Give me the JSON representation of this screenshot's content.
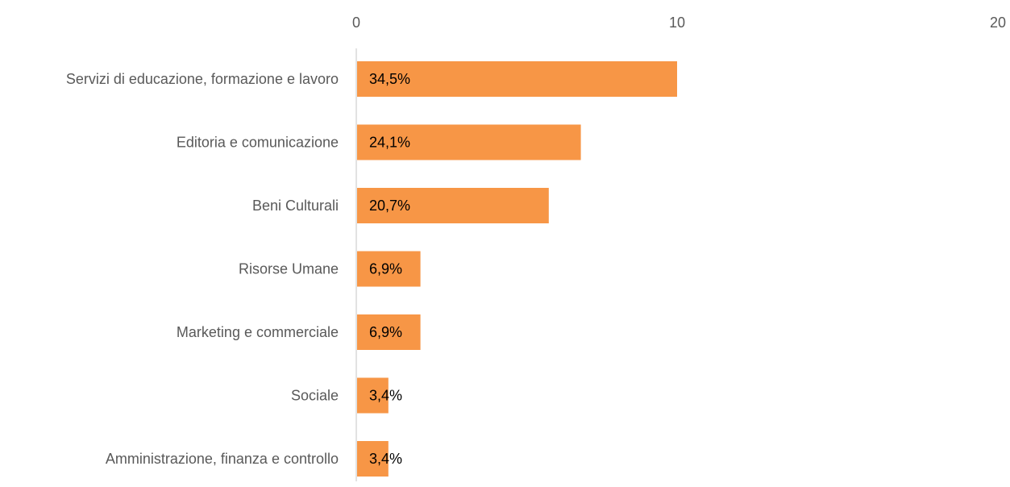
{
  "chart_data": {
    "type": "bar",
    "orientation": "horizontal",
    "categories": [
      "Servizi di educazione, formazione e lavoro",
      "Editoria e comunicazione",
      "Beni Culturali",
      "Risorse Umane",
      "Marketing e commerciale",
      "Sociale",
      "Amministrazione, finanza e controllo"
    ],
    "values": [
      10,
      7,
      6,
      2,
      2,
      1,
      1
    ],
    "data_labels": [
      "34,5%",
      "24,1%",
      "20,7%",
      "6,9%",
      "6,9%",
      "3,4%",
      "3,4%"
    ],
    "xlim": [
      0,
      20
    ],
    "x_ticks": [
      "0",
      "10",
      "20"
    ],
    "x_axis_position": "top",
    "title": "",
    "xlabel": "",
    "ylabel": "",
    "grid": false,
    "legend": "none",
    "colors": {
      "bar": "#F79646",
      "axis": "#D9D9D9",
      "tick_text": "#595959",
      "data_label_text": "#000000"
    }
  }
}
